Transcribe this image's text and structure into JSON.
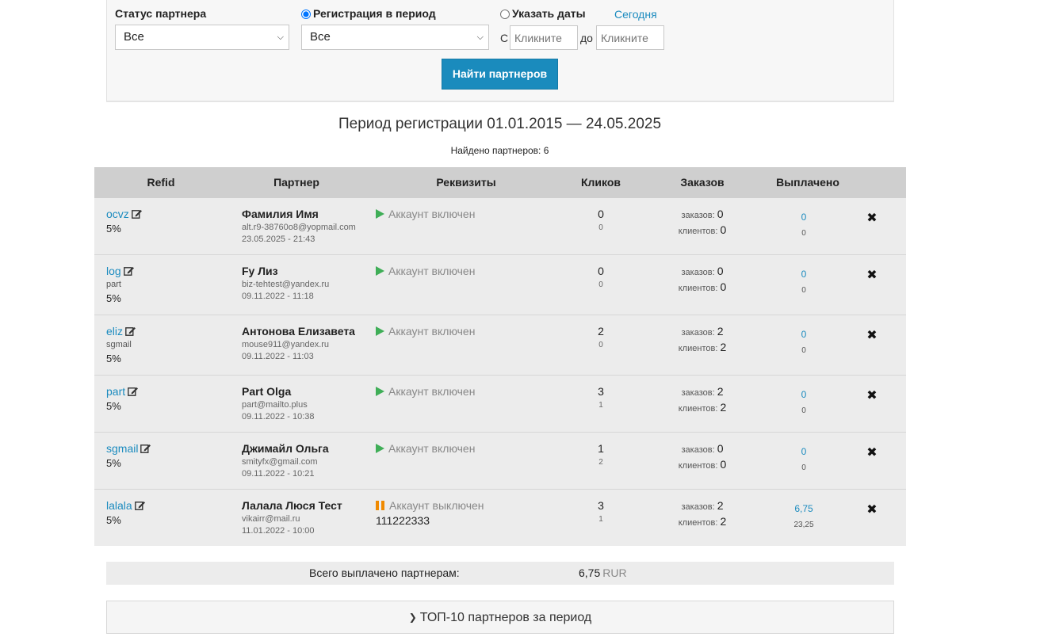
{
  "filters": {
    "status_label": "Статус партнера",
    "status_value": "Все",
    "reg_period_label": "Регистрация в период",
    "reg_period_value": "Все",
    "specify_dates_label": "Указать даты",
    "today_link": "Сегодня",
    "from_label": "С",
    "from_placeholder": "Кликните",
    "to_label": "до",
    "to_placeholder": "Кликните",
    "find_button": "Найти партнеров"
  },
  "period_title": "Период регистрации 01.01.2015 — 24.05.2025",
  "found_text": "Найдено партнеров: 6",
  "table": {
    "headers": [
      "Refid",
      "Партнер",
      "Реквизиты",
      "Кликов",
      "Заказов",
      "Выплачено"
    ],
    "orders_label": "заказов:",
    "clients_label": "клиентов:",
    "rows": [
      {
        "refid": "ocvz",
        "tag": "",
        "percent": "5%",
        "name": "Фамилия Имя",
        "email": "alt.r9-38760o8@yopmail.com",
        "date": "23.05.2025 - 21:43",
        "status": "Аккаунт включен",
        "status_type": "on",
        "requisites": "",
        "clicks": "0",
        "clicks_sub": "0",
        "orders": "0",
        "clients": "0",
        "paid": "0",
        "paid_sub": "0"
      },
      {
        "refid": "log",
        "tag": "part",
        "percent": "5%",
        "name": "Fy Лиз",
        "email": "biz-tehtest@yandex.ru",
        "date": "09.11.2022 - 11:18",
        "status": "Аккаунт включен",
        "status_type": "on",
        "requisites": "",
        "clicks": "0",
        "clicks_sub": "0",
        "orders": "0",
        "clients": "0",
        "paid": "0",
        "paid_sub": "0"
      },
      {
        "refid": "eliz",
        "tag": "sgmail",
        "percent": "5%",
        "name": "Антонова Елизавета",
        "email": "mouse911@yandex.ru",
        "date": "09.11.2022 - 11:03",
        "status": "Аккаунт включен",
        "status_type": "on",
        "requisites": "",
        "clicks": "2",
        "clicks_sub": "0",
        "orders": "2",
        "clients": "2",
        "paid": "0",
        "paid_sub": "0"
      },
      {
        "refid": "part",
        "tag": "",
        "percent": "5%",
        "name": "Part Olga",
        "email": "part@mailto.plus",
        "date": "09.11.2022 - 10:38",
        "status": "Аккаунт включен",
        "status_type": "on",
        "requisites": "",
        "clicks": "3",
        "clicks_sub": "1",
        "orders": "2",
        "clients": "2",
        "paid": "0",
        "paid_sub": "0"
      },
      {
        "refid": "sgmail",
        "tag": "",
        "percent": "5%",
        "name": "Джимайл Ольга",
        "email": "smityfx@gmail.com",
        "date": "09.11.2022 - 10:21",
        "status": "Аккаунт включен",
        "status_type": "on",
        "requisites": "",
        "clicks": "1",
        "clicks_sub": "2",
        "orders": "0",
        "clients": "0",
        "paid": "0",
        "paid_sub": "0"
      },
      {
        "refid": "lalala",
        "tag": "",
        "percent": "5%",
        "name": "Лалала Люся Тест",
        "email": "vikairr@mail.ru",
        "date": "11.01.2022 - 10:00",
        "status": "Аккаунт выключен",
        "status_type": "off",
        "requisites": "111222333",
        "clicks": "3",
        "clicks_sub": "1",
        "orders": "2",
        "clients": "2",
        "paid": "6,75",
        "paid_sub": "23,25"
      }
    ]
  },
  "total": {
    "label": "Всего выплачено партнерам:",
    "value": "6,75",
    "currency": "RUR"
  },
  "top10_label": "ТОП-10 партнеров за период",
  "colors": {
    "accent": "#1a8bbd",
    "link": "#1b8bbf",
    "on": "#3fae57",
    "off": "#f08a00"
  }
}
